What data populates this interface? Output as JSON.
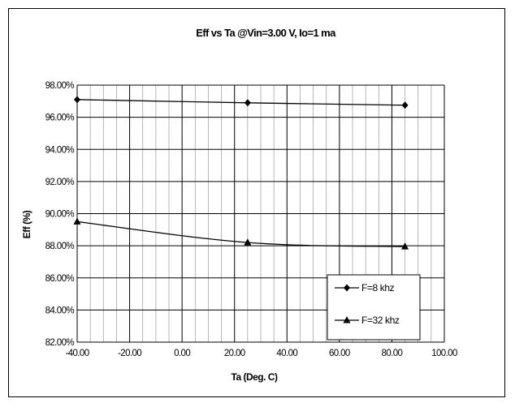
{
  "chart_data": {
    "type": "line",
    "title": "Eff vs Ta @Vin=3.00 V, Io=1 ma",
    "xlabel": "Ta (Deg. C)",
    "ylabel": "Eff (%)",
    "xlim": [
      -40,
      100
    ],
    "ylim": [
      82,
      98
    ],
    "x_ticks": [
      -40,
      -20,
      0,
      20,
      40,
      60,
      80,
      100
    ],
    "x_tick_labels": [
      "-40.00",
      "-20.00",
      "0.00",
      "20.00",
      "40.00",
      "60.00",
      "80.00",
      "100.00"
    ],
    "y_ticks": [
      98,
      96,
      94,
      92,
      90,
      88,
      86,
      84,
      82
    ],
    "y_tick_labels": [
      "98.00%",
      "96.00%",
      "94.00%",
      "92.00%",
      "90.00%",
      "88.00%",
      "86.00%",
      "84.00%",
      "82.00%"
    ],
    "x_minor_step": 5,
    "grid": true,
    "legend_position": "bottom-right",
    "series": [
      {
        "name": "F=8 khz",
        "marker": "diamond",
        "x": [
          -40,
          25,
          85
        ],
        "y": [
          97.1,
          96.9,
          96.75
        ]
      },
      {
        "name": "F=32 khz",
        "marker": "triangle",
        "x": [
          -40,
          25,
          85
        ],
        "y": [
          89.5,
          88.2,
          87.95
        ]
      }
    ],
    "colors": {
      "line": "#000000",
      "grid": "#000000",
      "background": "#ffffff"
    }
  }
}
